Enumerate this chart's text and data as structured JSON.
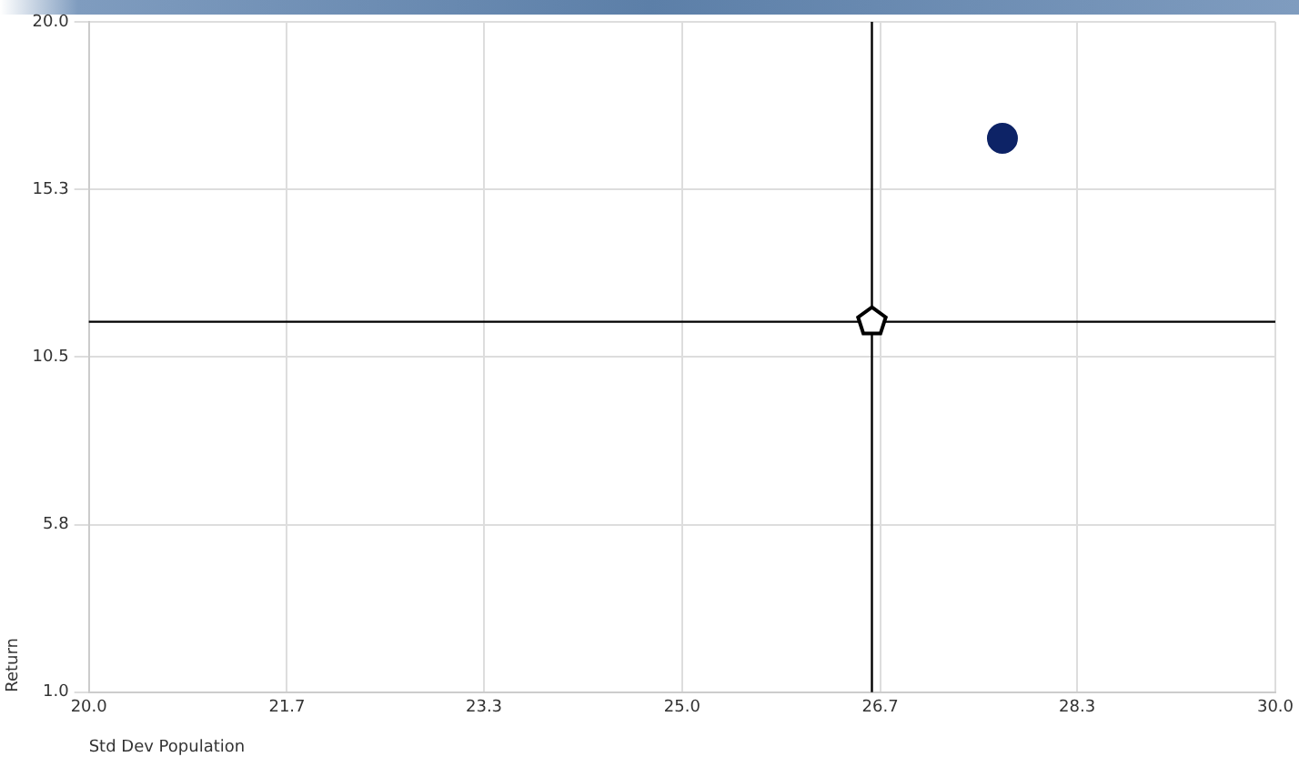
{
  "chart_data": {
    "type": "scatter",
    "xlabel": "Std Dev Population",
    "ylabel": "Return",
    "xlim": [
      20,
      30
    ],
    "xticks": [
      {
        "value": 20,
        "label": "20.0"
      },
      {
        "value": 21.67,
        "label": "21.7"
      },
      {
        "value": 23.33,
        "label": "23.3"
      },
      {
        "value": 25,
        "label": "25.0"
      },
      {
        "value": 26.67,
        "label": "26.7"
      },
      {
        "value": 28.33,
        "label": "28.3"
      },
      {
        "value": 30,
        "label": "30.0"
      }
    ],
    "ylim": [
      1,
      20
    ],
    "yticks": [
      {
        "value": 1,
        "label": "1.0"
      },
      {
        "value": 5.75,
        "label": "5.8"
      },
      {
        "value": 10.5,
        "label": "10.5"
      },
      {
        "value": 15.25,
        "label": "15.3"
      },
      {
        "value": 20,
        "label": "20.0"
      }
    ],
    "grid": true,
    "legend": false,
    "series": [
      {
        "color": "#0d2366",
        "marker": "circle",
        "x": [
          27.7
        ],
        "values": [
          16.7
        ]
      },
      {
        "color": "#000000",
        "x": [
          26.6
        ],
        "values": [
          11.5
        ]
      }
    ],
    "ref_lines": [
      {
        "axis": "x",
        "value": 26.6,
        "color": "#000000"
      },
      {
        "axis": "y",
        "value": 11.5,
        "color": "#000000"
      }
    ]
  }
}
